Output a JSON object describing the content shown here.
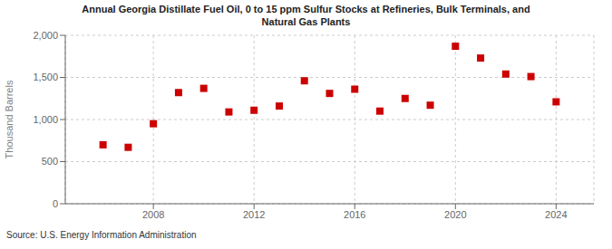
{
  "chart_data": {
    "type": "scatter",
    "title": "Annual Georgia Distillate Fuel Oil, 0 to 15 ppm Sulfur Stocks at Refineries, Bulk Terminals, and\nNatural Gas Plants",
    "ylabel": "Thousand Barrels",
    "source": "Source: U.S. Energy Information Administration",
    "x": [
      2006,
      2007,
      2008,
      2009,
      2010,
      2011,
      2012,
      2013,
      2014,
      2015,
      2016,
      2017,
      2018,
      2019,
      2020,
      2021,
      2022,
      2023,
      2024
    ],
    "values": [
      700,
      670,
      950,
      1320,
      1370,
      1090,
      1110,
      1160,
      1460,
      1310,
      1360,
      1100,
      1250,
      1170,
      1870,
      1730,
      1540,
      1510,
      1210
    ],
    "color": "#cc0000",
    "marker": "square",
    "xlim": [
      2004.5,
      2025.5
    ],
    "xticks": [
      2008,
      2012,
      2016,
      2020,
      2024
    ],
    "ylim": [
      0,
      2000
    ],
    "yticks": [
      0,
      500,
      {
        "value": 1000,
        "label": "1,000"
      },
      {
        "value": 1500,
        "label": "1,500"
      },
      {
        "value": 2000,
        "label": "2,000"
      }
    ],
    "grid": true
  }
}
